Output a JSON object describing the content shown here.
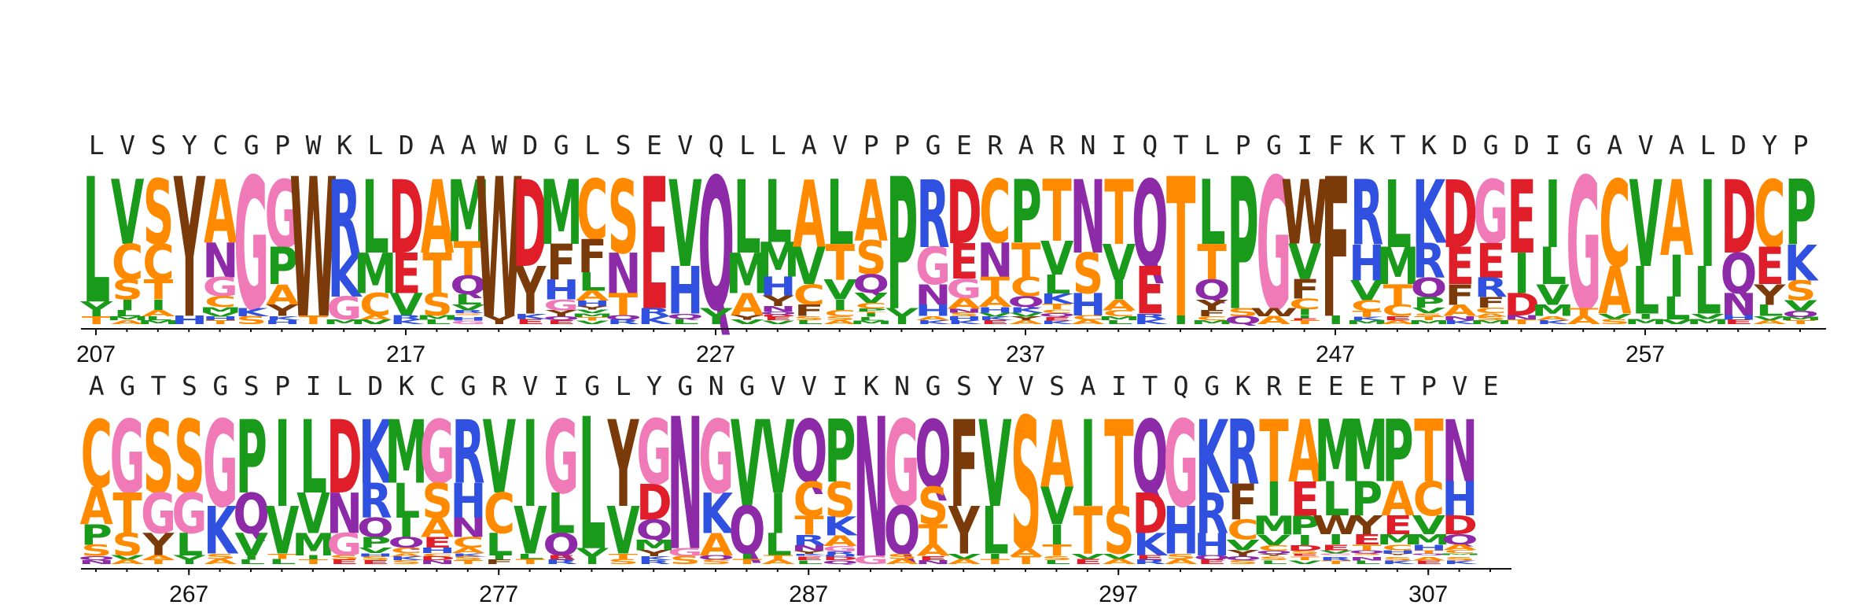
{
  "colors": {
    "hydrophobic": "#1a9a1a",
    "aliphatic_orange": "#ff8a00",
    "basic": "#3050e0",
    "acidic": "#e01e2a",
    "polar_purple": "#8c2aa8",
    "glycine_pink": "#f07ab8",
    "aromatic_brown": "#7a3a0a",
    "axis": "#111111"
  },
  "rows": [
    {
      "consensus": "LVSYCGPWKLDAAWDGLSEVQLLAVPPGERARNIQTLPGIFKTKDGDIGAVALDYP",
      "ticks": [
        "207",
        "217",
        "227",
        "237",
        "247",
        "257"
      ],
      "stacks": [
        [
          "L",
          "VIT"
        ],
        [
          "VCSIL",
          "MA"
        ],
        [
          "SCTIA",
          "LM"
        ],
        [
          "Y",
          "H"
        ],
        [
          "ANGCM",
          "VHT"
        ],
        [
          "G",
          "KS"
        ],
        [
          "GPAY",
          "KH"
        ],
        [
          "W",
          "T"
        ],
        [
          "RKG",
          "M"
        ],
        [
          "LMC",
          "AV"
        ],
        [
          "DEV",
          "RK"
        ],
        [
          "ATS",
          "ML"
        ],
        [
          "MTQLVRSAEK",
          "HG"
        ],
        [
          "W",
          "Y"
        ],
        [
          "DY",
          "KE"
        ],
        [
          "MFHGY",
          "QE"
        ],
        [
          "CFLAH",
          "YVMTV"
        ],
        [
          "SNT",
          "QR"
        ],
        [
          "E",
          "RK"
        ],
        [
          "VH",
          "QL"
        ],
        [
          "Q",
          "VI"
        ],
        [
          "LMA",
          "YV"
        ],
        [
          "LMHYNQD",
          "EV"
        ],
        [
          "AVCF",
          "SL"
        ],
        [
          "LTVIC",
          "SA"
        ],
        [
          "ASQVCPT",
          "ILM"
        ],
        [
          "P",
          "VI"
        ],
        [
          "RGNH",
          "AK"
        ],
        [
          "DEGA",
          "NSHK"
        ],
        [
          "CNTAH",
          "VKE"
        ],
        [
          "PTCQK",
          "VYA"
        ],
        [
          "TVLKT",
          "CQEK"
        ],
        [
          "NSH",
          "CA"
        ],
        [
          "TVIAC",
          "ML"
        ],
        [
          "QE",
          "RK"
        ],
        [
          "T",
          "I"
        ],
        [
          "LTQYF",
          "CM"
        ],
        [
          "P",
          "SQ"
        ],
        [
          "G",
          "WA"
        ],
        [
          "WVFCIIE",
          "T"
        ],
        [
          "F",
          "I"
        ],
        [
          "RHVCTK",
          "M"
        ],
        [
          "LMTC",
          "EA"
        ],
        [
          "KRQPVS",
          "TM"
        ],
        [
          "DEFA",
          "NK"
        ],
        [
          "GERFCA",
          "SM"
        ],
        [
          "EID",
          "NT"
        ],
        [
          "ILVM",
          "AK"
        ],
        [
          "G",
          "TA"
        ],
        [
          "CA",
          "VS"
        ],
        [
          "VL",
          "IM"
        ],
        [
          "AIL",
          "V"
        ],
        [
          "IL",
          "VM"
        ],
        [
          "DQN",
          "HE"
        ],
        [
          "CEYL",
          "VA"
        ],
        [
          "PKSVQM",
          "T"
        ]
      ]
    },
    {
      "consensus": "AGTSGSPILDKCGRVIGLYGNGVVIKNGSYVSAITQGKREEETPVE",
      "ticks": [
        "267",
        "277",
        "287",
        "297",
        "307"
      ],
      "stacks": [
        [
          "CAPS",
          "QN"
        ],
        [
          "GTS",
          "VA"
        ],
        [
          "SGY",
          "AT"
        ],
        [
          "SGL",
          "VI"
        ],
        [
          "GK",
          "SA"
        ],
        [
          "PQV",
          "IL"
        ],
        [
          "IV",
          "TL"
        ],
        [
          "LVM",
          "IT"
        ],
        [
          "DNG",
          "SE"
        ],
        [
          "KRQPVH",
          "SE"
        ],
        [
          "MLIQCA",
          "KS"
        ],
        [
          "GSAEHC",
          "DN"
        ],
        [
          "RHNCAK",
          "ST"
        ],
        [
          "VCL",
          "IF"
        ],
        [
          "IV",
          "LT"
        ],
        [
          "GLQ",
          "ER"
        ],
        [
          "L",
          "VI"
        ],
        [
          "YV",
          "TS"
        ],
        [
          "GDQMY",
          "KR"
        ],
        [
          "N",
          "GS"
        ],
        [
          "GKA",
          "QS"
        ],
        [
          "VQ",
          "IT"
        ],
        [
          "VIL",
          "TA"
        ],
        [
          "QCTRNYKS",
          "EL"
        ],
        [
          "PSKAGRH",
          "DQ"
        ],
        [
          "N",
          "G"
        ],
        [
          "GQ",
          "SA"
        ],
        [
          "QSTA",
          "EN"
        ],
        [
          "FY",
          "VA"
        ],
        [
          "VL",
          "IT"
        ],
        [
          "S",
          "AT"
        ],
        [
          "AVIT",
          "SL"
        ],
        [
          "IT",
          "VE"
        ],
        [
          "TS",
          "VA"
        ],
        [
          "QDK",
          "ER"
        ],
        [
          "GH",
          "SA"
        ],
        [
          "KRH",
          "QE"
        ],
        [
          "RFCVY",
          "QS"
        ],
        [
          "TIMVCQYE",
          "SL"
        ],
        [
          "AEPIDSEW",
          "TV"
        ],
        [
          "MLWIEVGSK",
          "RT"
        ],
        [
          "MPYETQSAD",
          "NL"
        ],
        [
          "PAEMCHYTF",
          "SK"
        ],
        [
          "TCVMHTQYR",
          "AE"
        ],
        [
          "NHDQACMELV",
          "SK"
        ],
        [
          "",
          ""
        ]
      ]
    }
  ]
}
